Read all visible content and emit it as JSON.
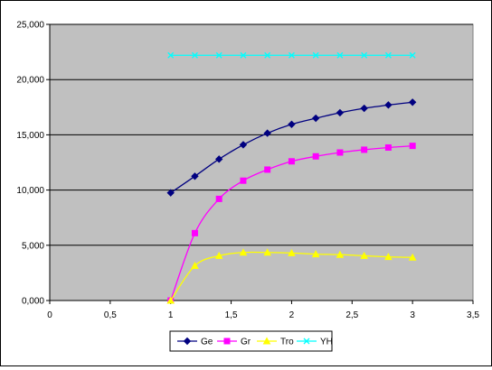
{
  "chart_data": {
    "type": "line",
    "title": "",
    "xlabel": "",
    "ylabel": "",
    "xlim": [
      0,
      3.5
    ],
    "ylim": [
      0,
      25
    ],
    "x_ticks": [
      {
        "value": 0,
        "label": "0"
      },
      {
        "value": 0.5,
        "label": "0,5"
      },
      {
        "value": 1,
        "label": "1"
      },
      {
        "value": 1.5,
        "label": "1,5"
      },
      {
        "value": 2,
        "label": "2"
      },
      {
        "value": 2.5,
        "label": "2,5"
      },
      {
        "value": 3,
        "label": "3"
      },
      {
        "value": 3.5,
        "label": "3,5"
      }
    ],
    "y_ticks": [
      {
        "value": 0,
        "label": "0,000"
      },
      {
        "value": 5,
        "label": "5,000"
      },
      {
        "value": 10,
        "label": "10,000"
      },
      {
        "value": 15,
        "label": "15,000"
      },
      {
        "value": 20,
        "label": "20,000"
      },
      {
        "value": 25,
        "label": "25,000"
      }
    ],
    "grid": "horizontal",
    "plot_background": "#c0c0c0",
    "legend_position": "bottom",
    "x": [
      1,
      1.2,
      1.4,
      1.6,
      1.8,
      2,
      2.2,
      2.4,
      2.6,
      2.8,
      3
    ],
    "series": [
      {
        "name": "Ge",
        "color": "#000080",
        "marker": "diamond",
        "values": [
          9.75,
          11.25,
          12.8,
          14.1,
          15.15,
          15.95,
          16.5,
          17.0,
          17.4,
          17.7,
          17.95
        ]
      },
      {
        "name": "Gr",
        "color": "#ff00ff",
        "marker": "square",
        "values": [
          0.0,
          6.1,
          9.2,
          10.85,
          11.85,
          12.6,
          13.05,
          13.4,
          13.65,
          13.85,
          14.0
        ]
      },
      {
        "name": "Tro",
        "color": "#ffff00",
        "marker": "triangle",
        "values": [
          0.0,
          3.15,
          4.05,
          4.35,
          4.35,
          4.3,
          4.2,
          4.15,
          4.05,
          3.95,
          3.9
        ]
      },
      {
        "name": "YH",
        "color": "#00ffff",
        "marker": "x",
        "values": [
          22.2,
          22.2,
          22.2,
          22.2,
          22.2,
          22.2,
          22.2,
          22.2,
          22.2,
          22.2,
          22.2
        ]
      }
    ]
  }
}
